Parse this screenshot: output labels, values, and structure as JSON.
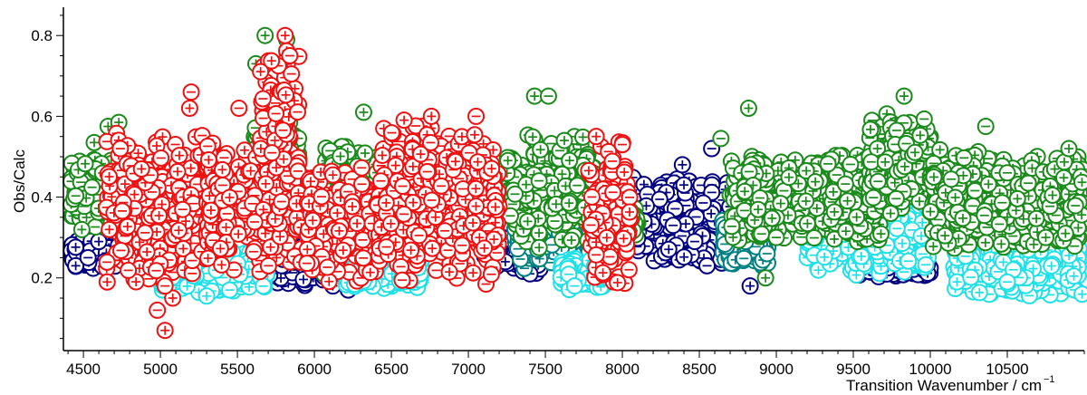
{
  "chart_data": {
    "type": "scatter",
    "title": "",
    "xlabel": "Transition Wavenumber / cm",
    "xlabel_superscript": "−1",
    "ylabel": "Obs/Calc",
    "xlim": [
      4370,
      11000
    ],
    "ylim": [
      0.02,
      0.87
    ],
    "x_ticks_major": [
      4500,
      5000,
      5500,
      6000,
      6500,
      7000,
      7500,
      8000,
      8500,
      9000,
      9500,
      10000,
      10500
    ],
    "x_ticks_minor_step": 100,
    "y_ticks_major": [
      0.2,
      0.4,
      0.6,
      0.8
    ],
    "y_ticks_minor_step": 0.05,
    "x_tick_labels": [
      "4500",
      "5000",
      "5500",
      "6000",
      "6500",
      "7000",
      "7500",
      "8000",
      "8500",
      "9000",
      "9500",
      "10000",
      "10500"
    ],
    "y_tick_labels": [
      "0.2",
      "0.4",
      "0.6",
      "0.8"
    ],
    "grid": false,
    "legend": "none",
    "marker": "open circle with + (positive) or − (negative) sign",
    "series": [
      {
        "color": "#000080",
        "segments": [
          {
            "x": [
              4400,
              5000
            ],
            "y": [
              0.22,
              0.3
            ]
          },
          {
            "x": [
              5700,
              6400
            ],
            "y": [
              0.18,
              0.31
            ]
          },
          {
            "x": [
              7100,
              7500
            ],
            "y": [
              0.2,
              0.34
            ]
          },
          {
            "x": [
              8050,
              8700
            ],
            "y": [
              0.22,
              0.46
            ]
          },
          {
            "x": [
              9500,
              10000
            ],
            "y": [
              0.2,
              0.26
            ]
          }
        ],
        "points": [
          {
            "x": 4450,
            "y": 0.23,
            "s": "+"
          },
          {
            "x": 4530,
            "y": 0.25,
            "s": "-"
          },
          {
            "x": 4600,
            "y": 0.29,
            "s": "+"
          },
          {
            "x": 6120,
            "y": 0.18,
            "s": "+"
          },
          {
            "x": 6220,
            "y": 0.17,
            "s": "-"
          },
          {
            "x": 8390,
            "y": 0.48,
            "s": "+"
          },
          {
            "x": 8830,
            "y": 0.18,
            "s": "+"
          },
          {
            "x": 8580,
            "y": 0.52,
            "s": "-"
          },
          {
            "x": 8400,
            "y": 0.43,
            "s": "+"
          },
          {
            "x": 8470,
            "y": 0.29,
            "s": "-"
          },
          {
            "x": 8330,
            "y": 0.33,
            "s": "-"
          },
          {
            "x": 8550,
            "y": 0.23,
            "s": "-"
          },
          {
            "x": 7240,
            "y": 0.24,
            "s": "+"
          },
          {
            "x": 7400,
            "y": 0.21,
            "s": "-"
          }
        ]
      },
      {
        "color": "#008080",
        "segments": [
          {
            "x": [
              7300,
              7700
            ],
            "y": [
              0.22,
              0.4
            ]
          },
          {
            "x": [
              8650,
              8950
            ],
            "y": [
              0.22,
              0.36
            ]
          }
        ],
        "points": [
          {
            "x": 7450,
            "y": 0.27,
            "s": "+"
          },
          {
            "x": 8800,
            "y": 0.29,
            "s": "-"
          },
          {
            "x": 8940,
            "y": 0.26,
            "s": "-"
          },
          {
            "x": 10260,
            "y": 0.26,
            "s": "-"
          }
        ]
      },
      {
        "color": "#20e0e8",
        "segments": [
          {
            "x": [
              5000,
              5700
            ],
            "y": [
              0.16,
              0.28
            ]
          },
          {
            "x": [
              6200,
              6700
            ],
            "y": [
              0.17,
              0.26
            ]
          },
          {
            "x": [
              7600,
              7900
            ],
            "y": [
              0.17,
              0.25
            ]
          },
          {
            "x": [
              9200,
              10000
            ],
            "y": [
              0.2,
              0.4
            ]
          },
          {
            "x": [
              10150,
              11000
            ],
            "y": [
              0.15,
              0.32
            ]
          }
        ],
        "points": [
          {
            "x": 5300,
            "y": 0.155,
            "s": "+"
          },
          {
            "x": 5450,
            "y": 0.17,
            "s": "-"
          },
          {
            "x": 9650,
            "y": 0.43,
            "s": "+"
          },
          {
            "x": 10500,
            "y": 0.19,
            "s": "-"
          },
          {
            "x": 7690,
            "y": 0.18,
            "s": "-"
          }
        ]
      },
      {
        "color": "#1a8a1a",
        "segments": [
          {
            "x": [
              4400,
              4800
            ],
            "y": [
              0.3,
              0.52
            ]
          },
          {
            "x": [
              5600,
              5900
            ],
            "y": [
              0.4,
              0.62
            ]
          },
          {
            "x": [
              6050,
              6450
            ],
            "y": [
              0.28,
              0.54
            ]
          },
          {
            "x": [
              7250,
              7850
            ],
            "y": [
              0.28,
              0.56
            ]
          },
          {
            "x": [
              8000,
              8100
            ],
            "y": [
              0.3,
              0.4
            ]
          },
          {
            "x": [
              8700,
              9700
            ],
            "y": [
              0.28,
              0.52
            ]
          },
          {
            "x": [
              9600,
              10000
            ],
            "y": [
              0.35,
              0.62
            ]
          },
          {
            "x": [
              10000,
              11000
            ],
            "y": [
              0.26,
              0.52
            ]
          }
        ],
        "points": [
          {
            "x": 5680,
            "y": 0.8,
            "s": "+"
          },
          {
            "x": 5820,
            "y": 0.79,
            "s": "+"
          },
          {
            "x": 5620,
            "y": 0.73,
            "s": "+"
          },
          {
            "x": 4660,
            "y": 0.575,
            "s": "+"
          },
          {
            "x": 4730,
            "y": 0.585,
            "s": "+"
          },
          {
            "x": 4570,
            "y": 0.535,
            "s": "+"
          },
          {
            "x": 6320,
            "y": 0.61,
            "s": "+"
          },
          {
            "x": 7430,
            "y": 0.65,
            "s": "+"
          },
          {
            "x": 7520,
            "y": 0.65,
            "s": "-"
          },
          {
            "x": 8820,
            "y": 0.62,
            "s": "+"
          },
          {
            "x": 9830,
            "y": 0.65,
            "s": "+"
          },
          {
            "x": 10360,
            "y": 0.575,
            "s": "-"
          },
          {
            "x": 10900,
            "y": 0.52,
            "s": "+"
          },
          {
            "x": 8640,
            "y": 0.545,
            "s": "-"
          },
          {
            "x": 9000,
            "y": 0.3,
            "s": "-"
          },
          {
            "x": 10750,
            "y": 0.3,
            "s": "+"
          },
          {
            "x": 8930,
            "y": 0.2,
            "s": "+"
          },
          {
            "x": 6060,
            "y": 0.21,
            "s": "+"
          },
          {
            "x": 7460,
            "y": 0.275,
            "s": "+"
          },
          {
            "x": 10500,
            "y": 0.46,
            "s": "-"
          }
        ]
      },
      {
        "color": "#ee1111",
        "segments": [
          {
            "x": [
              4650,
              5400
            ],
            "y": [
              0.17,
              0.58
            ]
          },
          {
            "x": [
              5300,
              5950
            ],
            "y": [
              0.2,
              0.55
            ]
          },
          {
            "x": [
              5650,
              5900
            ],
            "y": [
              0.36,
              0.78
            ]
          },
          {
            "x": [
              5950,
              6400
            ],
            "y": [
              0.18,
              0.48
            ]
          },
          {
            "x": [
              6400,
              7200
            ],
            "y": [
              0.18,
              0.6
            ]
          },
          {
            "x": [
              7780,
              8050
            ],
            "y": [
              0.17,
              0.55
            ]
          }
        ],
        "points": [
          {
            "x": 5810,
            "y": 0.8,
            "s": "+"
          },
          {
            "x": 5840,
            "y": 0.75,
            "s": "-"
          },
          {
            "x": 5200,
            "y": 0.66,
            "s": "-"
          },
          {
            "x": 5190,
            "y": 0.62,
            "s": "+"
          },
          {
            "x": 5030,
            "y": 0.07,
            "s": "+"
          },
          {
            "x": 4980,
            "y": 0.12,
            "s": "-"
          },
          {
            "x": 5080,
            "y": 0.15,
            "s": "+"
          },
          {
            "x": 5030,
            "y": 0.18,
            "s": "-"
          },
          {
            "x": 6760,
            "y": 0.6,
            "s": "+"
          },
          {
            "x": 7050,
            "y": 0.6,
            "s": "-"
          },
          {
            "x": 7830,
            "y": 0.55,
            "s": "+"
          },
          {
            "x": 8000,
            "y": 0.53,
            "s": "-"
          },
          {
            "x": 4740,
            "y": 0.52,
            "s": "-"
          },
          {
            "x": 5510,
            "y": 0.62,
            "s": "-"
          }
        ]
      }
    ]
  }
}
